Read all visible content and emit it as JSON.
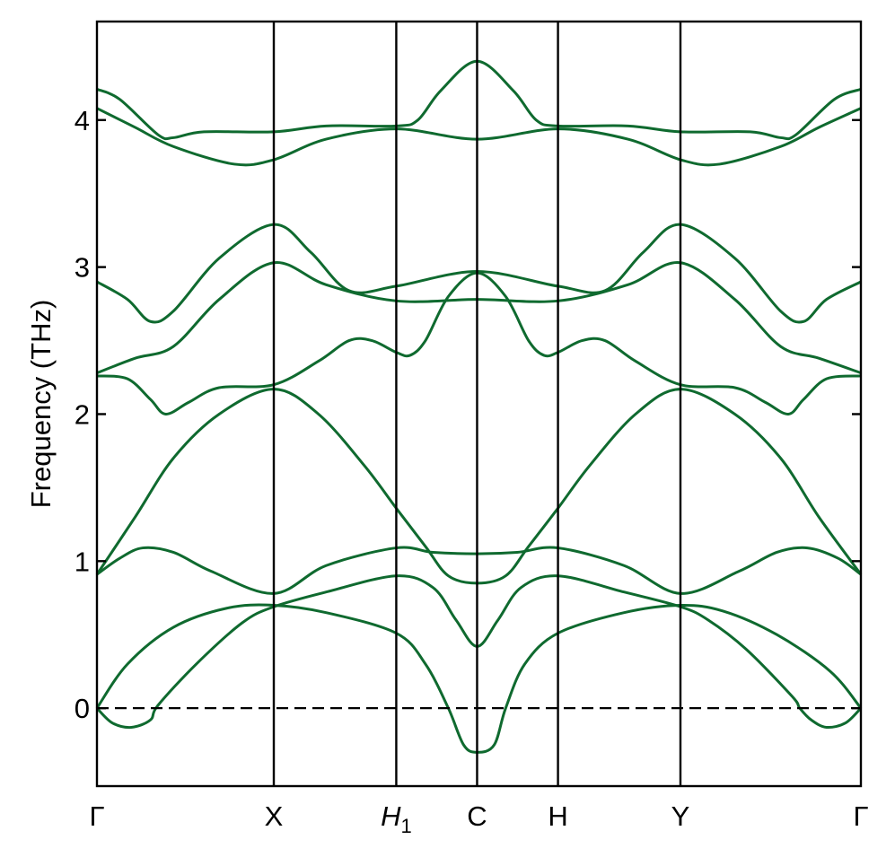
{
  "chart_data": {
    "type": "line",
    "title": "",
    "xlabel": "",
    "ylabel": "Frequency (THz)",
    "ylim": [
      -0.53,
      4.67
    ],
    "yticks": [
      0,
      1,
      2,
      3,
      4
    ],
    "grid": false,
    "reference_line": {
      "y": 0,
      "style": "dashed"
    },
    "line_color": "#0f6a2f",
    "high_symmetry_points": [
      {
        "label": "Γ",
        "sub": "",
        "italic": false,
        "x": 0.0
      },
      {
        "label": "X",
        "sub": "",
        "italic": false,
        "x": 0.2315
      },
      {
        "label": "H",
        "sub": "1",
        "italic": true,
        "x": 0.3918
      },
      {
        "label": "C",
        "sub": "",
        "italic": false,
        "x": 0.4976
      },
      {
        "label": "H",
        "sub": "",
        "italic": false,
        "x": 0.6035
      },
      {
        "label": "Y",
        "sub": "",
        "italic": false,
        "x": 0.7638
      },
      {
        "label": "Γ",
        "sub": "",
        "italic": false,
        "x": 1.0
      }
    ],
    "series": [
      {
        "points": [
          [
            0.0,
            0.0
          ],
          [
            0.04,
            0.3
          ],
          [
            0.1,
            0.55
          ],
          [
            0.17,
            0.68
          ],
          [
            0.2315,
            0.7
          ],
          [
            0.3,
            0.65
          ],
          [
            0.3918,
            0.51
          ],
          [
            0.43,
            0.3
          ],
          [
            0.46,
            0.0
          ],
          [
            0.48,
            -0.25
          ],
          [
            0.4976,
            -0.3
          ],
          [
            0.52,
            -0.25
          ],
          [
            0.535,
            0.0
          ],
          [
            0.56,
            0.3
          ],
          [
            0.6035,
            0.51
          ],
          [
            0.69,
            0.65
          ],
          [
            0.7638,
            0.7
          ],
          [
            0.82,
            0.66
          ],
          [
            0.89,
            0.5
          ],
          [
            0.96,
            0.25
          ],
          [
            1.0,
            0.0
          ]
        ]
      },
      {
        "points": [
          [
            0.0,
            0.0
          ],
          [
            0.02,
            -0.1
          ],
          [
            0.045,
            -0.13
          ],
          [
            0.07,
            -0.08
          ],
          [
            0.08,
            0.02
          ],
          [
            0.13,
            0.3
          ],
          [
            0.19,
            0.58
          ],
          [
            0.2315,
            0.69
          ],
          [
            0.3,
            0.79
          ],
          [
            0.3918,
            0.9
          ],
          [
            0.44,
            0.82
          ],
          [
            0.47,
            0.6
          ],
          [
            0.4976,
            0.42
          ],
          [
            0.525,
            0.6
          ],
          [
            0.555,
            0.82
          ],
          [
            0.6035,
            0.9
          ],
          [
            0.69,
            0.79
          ],
          [
            0.7638,
            0.69
          ],
          [
            0.8,
            0.6
          ],
          [
            0.85,
            0.4
          ],
          [
            0.91,
            0.08
          ],
          [
            0.92,
            0.0
          ],
          [
            0.935,
            -0.08
          ],
          [
            0.955,
            -0.13
          ],
          [
            0.98,
            -0.1
          ],
          [
            1.0,
            0.0
          ]
        ]
      },
      {
        "points": [
          [
            0.0,
            0.91
          ],
          [
            0.03,
            1.02
          ],
          [
            0.06,
            1.09
          ],
          [
            0.1,
            1.06
          ],
          [
            0.15,
            0.93
          ],
          [
            0.2315,
            0.78
          ],
          [
            0.3,
            0.97
          ],
          [
            0.3918,
            1.09
          ],
          [
            0.44,
            1.06
          ],
          [
            0.4976,
            1.05
          ],
          [
            0.55,
            1.06
          ],
          [
            0.6035,
            1.09
          ],
          [
            0.69,
            0.97
          ],
          [
            0.7638,
            0.78
          ],
          [
            0.84,
            0.93
          ],
          [
            0.89,
            1.06
          ],
          [
            0.93,
            1.09
          ],
          [
            0.97,
            1.02
          ],
          [
            1.0,
            0.91
          ]
        ]
      },
      {
        "points": [
          [
            0.0,
            0.91
          ],
          [
            0.05,
            1.3
          ],
          [
            0.1,
            1.7
          ],
          [
            0.16,
            2.0
          ],
          [
            0.2315,
            2.17
          ],
          [
            0.29,
            2.0
          ],
          [
            0.35,
            1.65
          ],
          [
            0.3918,
            1.36
          ],
          [
            0.43,
            1.1
          ],
          [
            0.46,
            0.9
          ],
          [
            0.4976,
            0.85
          ],
          [
            0.535,
            0.9
          ],
          [
            0.565,
            1.1
          ],
          [
            0.6035,
            1.36
          ],
          [
            0.645,
            1.65
          ],
          [
            0.705,
            2.0
          ],
          [
            0.7638,
            2.17
          ],
          [
            0.835,
            2.0
          ],
          [
            0.895,
            1.7
          ],
          [
            0.945,
            1.3
          ],
          [
            1.0,
            0.91
          ]
        ]
      },
      {
        "points": [
          [
            0.0,
            2.26
          ],
          [
            0.04,
            2.24
          ],
          [
            0.07,
            2.1
          ],
          [
            0.09,
            2.0
          ],
          [
            0.12,
            2.08
          ],
          [
            0.16,
            2.18
          ],
          [
            0.2315,
            2.2
          ],
          [
            0.29,
            2.36
          ],
          [
            0.33,
            2.5
          ],
          [
            0.36,
            2.5
          ],
          [
            0.3918,
            2.42
          ],
          [
            0.41,
            2.4
          ],
          [
            0.43,
            2.5
          ],
          [
            0.46,
            2.8
          ],
          [
            0.4976,
            2.96
          ],
          [
            0.535,
            2.8
          ],
          [
            0.565,
            2.5
          ],
          [
            0.585,
            2.4
          ],
          [
            0.6035,
            2.42
          ],
          [
            0.635,
            2.5
          ],
          [
            0.665,
            2.5
          ],
          [
            0.705,
            2.36
          ],
          [
            0.7638,
            2.2
          ],
          [
            0.835,
            2.18
          ],
          [
            0.875,
            2.08
          ],
          [
            0.905,
            2.0
          ],
          [
            0.925,
            2.1
          ],
          [
            0.955,
            2.24
          ],
          [
            1.0,
            2.26
          ]
        ]
      },
      {
        "points": [
          [
            0.0,
            2.28
          ],
          [
            0.05,
            2.38
          ],
          [
            0.1,
            2.46
          ],
          [
            0.16,
            2.78
          ],
          [
            0.2315,
            3.03
          ],
          [
            0.3,
            2.88
          ],
          [
            0.3918,
            2.77
          ],
          [
            0.4976,
            2.78
          ],
          [
            0.6035,
            2.77
          ],
          [
            0.695,
            2.88
          ],
          [
            0.7638,
            3.03
          ],
          [
            0.835,
            2.78
          ],
          [
            0.895,
            2.46
          ],
          [
            0.945,
            2.38
          ],
          [
            1.0,
            2.28
          ]
        ]
      },
      {
        "points": [
          [
            0.0,
            2.9
          ],
          [
            0.04,
            2.78
          ],
          [
            0.07,
            2.63
          ],
          [
            0.1,
            2.7
          ],
          [
            0.16,
            3.06
          ],
          [
            0.2315,
            3.29
          ],
          [
            0.28,
            3.1
          ],
          [
            0.33,
            2.84
          ],
          [
            0.3918,
            2.87
          ],
          [
            0.4976,
            2.97
          ],
          [
            0.6035,
            2.87
          ],
          [
            0.665,
            2.84
          ],
          [
            0.715,
            3.1
          ],
          [
            0.7638,
            3.29
          ],
          [
            0.835,
            3.06
          ],
          [
            0.895,
            2.7
          ],
          [
            0.925,
            2.63
          ],
          [
            0.955,
            2.78
          ],
          [
            1.0,
            2.9
          ]
        ]
      },
      {
        "points": [
          [
            0.0,
            4.08
          ],
          [
            0.05,
            3.95
          ],
          [
            0.1,
            3.82
          ],
          [
            0.18,
            3.7
          ],
          [
            0.2315,
            3.73
          ],
          [
            0.3,
            3.87
          ],
          [
            0.3918,
            3.94
          ],
          [
            0.4976,
            3.87
          ],
          [
            0.6035,
            3.94
          ],
          [
            0.695,
            3.87
          ],
          [
            0.7638,
            3.73
          ],
          [
            0.815,
            3.7
          ],
          [
            0.895,
            3.82
          ],
          [
            0.945,
            3.95
          ],
          [
            1.0,
            4.08
          ]
        ]
      },
      {
        "points": [
          [
            0.0,
            4.21
          ],
          [
            0.03,
            4.14
          ],
          [
            0.08,
            3.9
          ],
          [
            0.1,
            3.88
          ],
          [
            0.14,
            3.92
          ],
          [
            0.2315,
            3.92
          ],
          [
            0.3,
            3.96
          ],
          [
            0.3918,
            3.96
          ],
          [
            0.42,
            4.0
          ],
          [
            0.45,
            4.2
          ],
          [
            0.4976,
            4.4
          ],
          [
            0.545,
            4.2
          ],
          [
            0.575,
            4.0
          ],
          [
            0.6035,
            3.96
          ],
          [
            0.695,
            3.96
          ],
          [
            0.7638,
            3.92
          ],
          [
            0.855,
            3.92
          ],
          [
            0.895,
            3.88
          ],
          [
            0.915,
            3.9
          ],
          [
            0.965,
            4.14
          ],
          [
            1.0,
            4.21
          ]
        ]
      }
    ]
  }
}
